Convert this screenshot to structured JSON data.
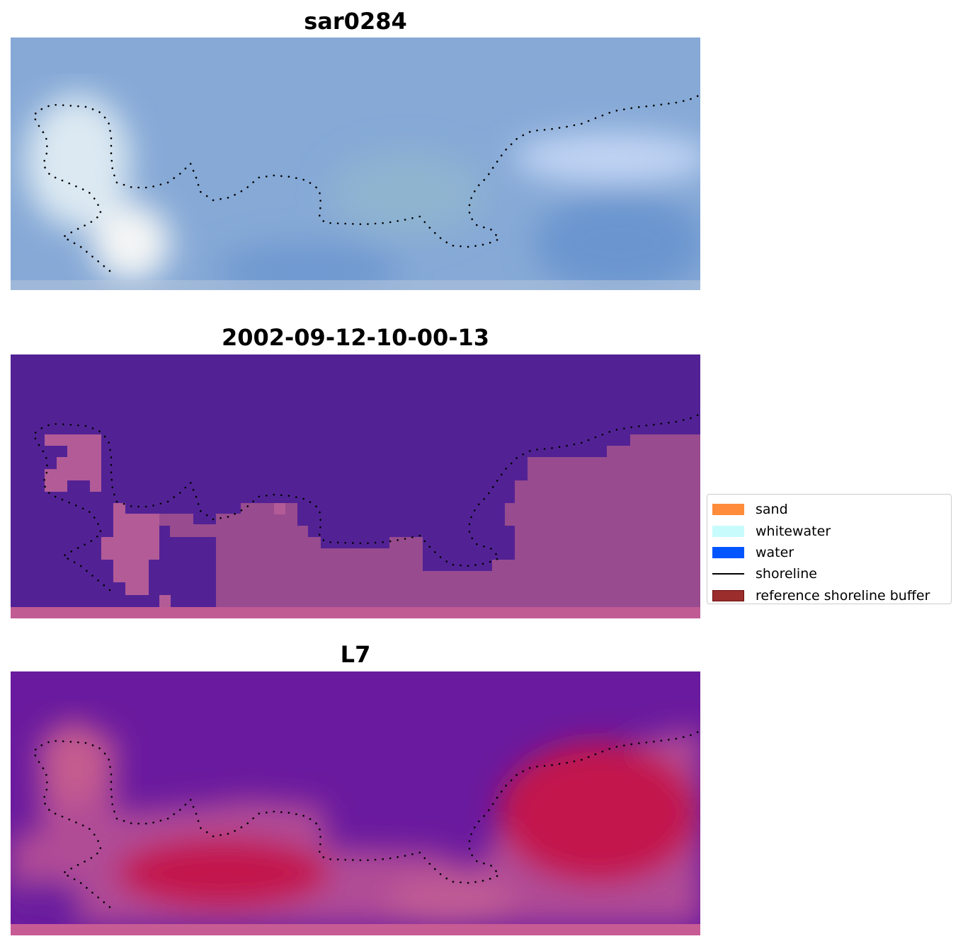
{
  "panels": [
    {
      "title": "sar0284",
      "kind": "rgb",
      "colors": {
        "base": "#86a9d6",
        "light": "#dce9f2",
        "white": "#f4f6f5",
        "deep": "#6a95cf",
        "bottom_strip": "#b7c8dc"
      }
    },
    {
      "title": "2002-09-12-10-00-13",
      "kind": "classified",
      "colors": {
        "water": "#522295",
        "land": "#9a4f8f",
        "land_light": "#b25b96",
        "bottom_strip": "#c05b94"
      }
    },
    {
      "title": "L7",
      "kind": "index",
      "colors": {
        "water": "#6a1a9e",
        "mid": "#c05b94",
        "high": "#c2184d",
        "bottom_strip": "#c75b94"
      }
    }
  ],
  "legend": {
    "items": [
      {
        "label": "sand",
        "type": "patch",
        "color": "#ff8c3b",
        "edge": "#ff8c3b"
      },
      {
        "label": "whitewater",
        "type": "patch",
        "color": "#c8fcfc",
        "edge": "#c8fcfc"
      },
      {
        "label": "water",
        "type": "patch",
        "color": "#0055ff",
        "edge": "#0055ff"
      },
      {
        "label": "shoreline",
        "type": "line",
        "color": "#000000"
      },
      {
        "label": "reference shoreline buffer",
        "type": "patch",
        "color": "#9b2d2d",
        "edge": "#6e0f0f"
      }
    ]
  }
}
